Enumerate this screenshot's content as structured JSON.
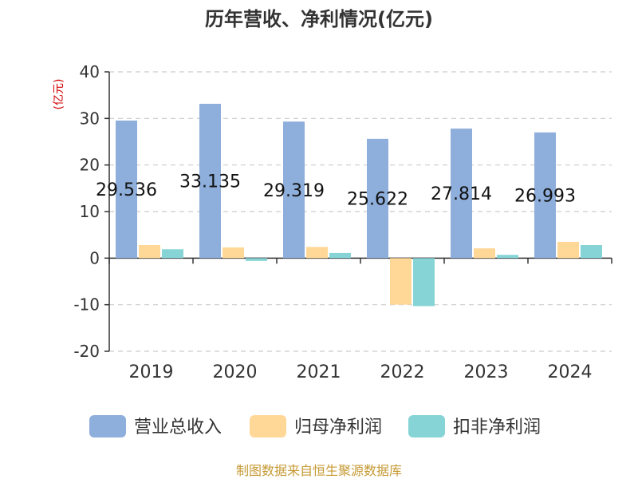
{
  "chart_data": {
    "type": "bar",
    "title": "历年营收、净利情况(亿元)",
    "unit_label": "(亿元)",
    "categories": [
      "2019",
      "2020",
      "2021",
      "2022",
      "2023",
      "2024"
    ],
    "series": [
      {
        "name": "营业总收入",
        "color": "#8eaedb",
        "values": [
          29.536,
          33.135,
          29.319,
          25.622,
          27.814,
          26.993
        ],
        "labels": [
          "29.536",
          "33.135",
          "29.319",
          "25.622",
          "27.814",
          "26.993"
        ]
      },
      {
        "name": "归母净利润",
        "color": "#ffd898",
        "values": [
          2.8,
          2.3,
          2.4,
          -10.0,
          2.1,
          3.5
        ]
      },
      {
        "name": "扣非净利润",
        "color": "#86d4d6",
        "values": [
          1.9,
          -0.6,
          1.1,
          -10.3,
          0.7,
          2.8
        ]
      }
    ],
    "ylim": [
      -20,
      40
    ],
    "yticks": [
      "40",
      "30",
      "20",
      "10",
      "0",
      "-10",
      "-20"
    ],
    "grid": true,
    "legend_position": "bottom",
    "source": "制图数据来自恒生聚源数据库"
  }
}
